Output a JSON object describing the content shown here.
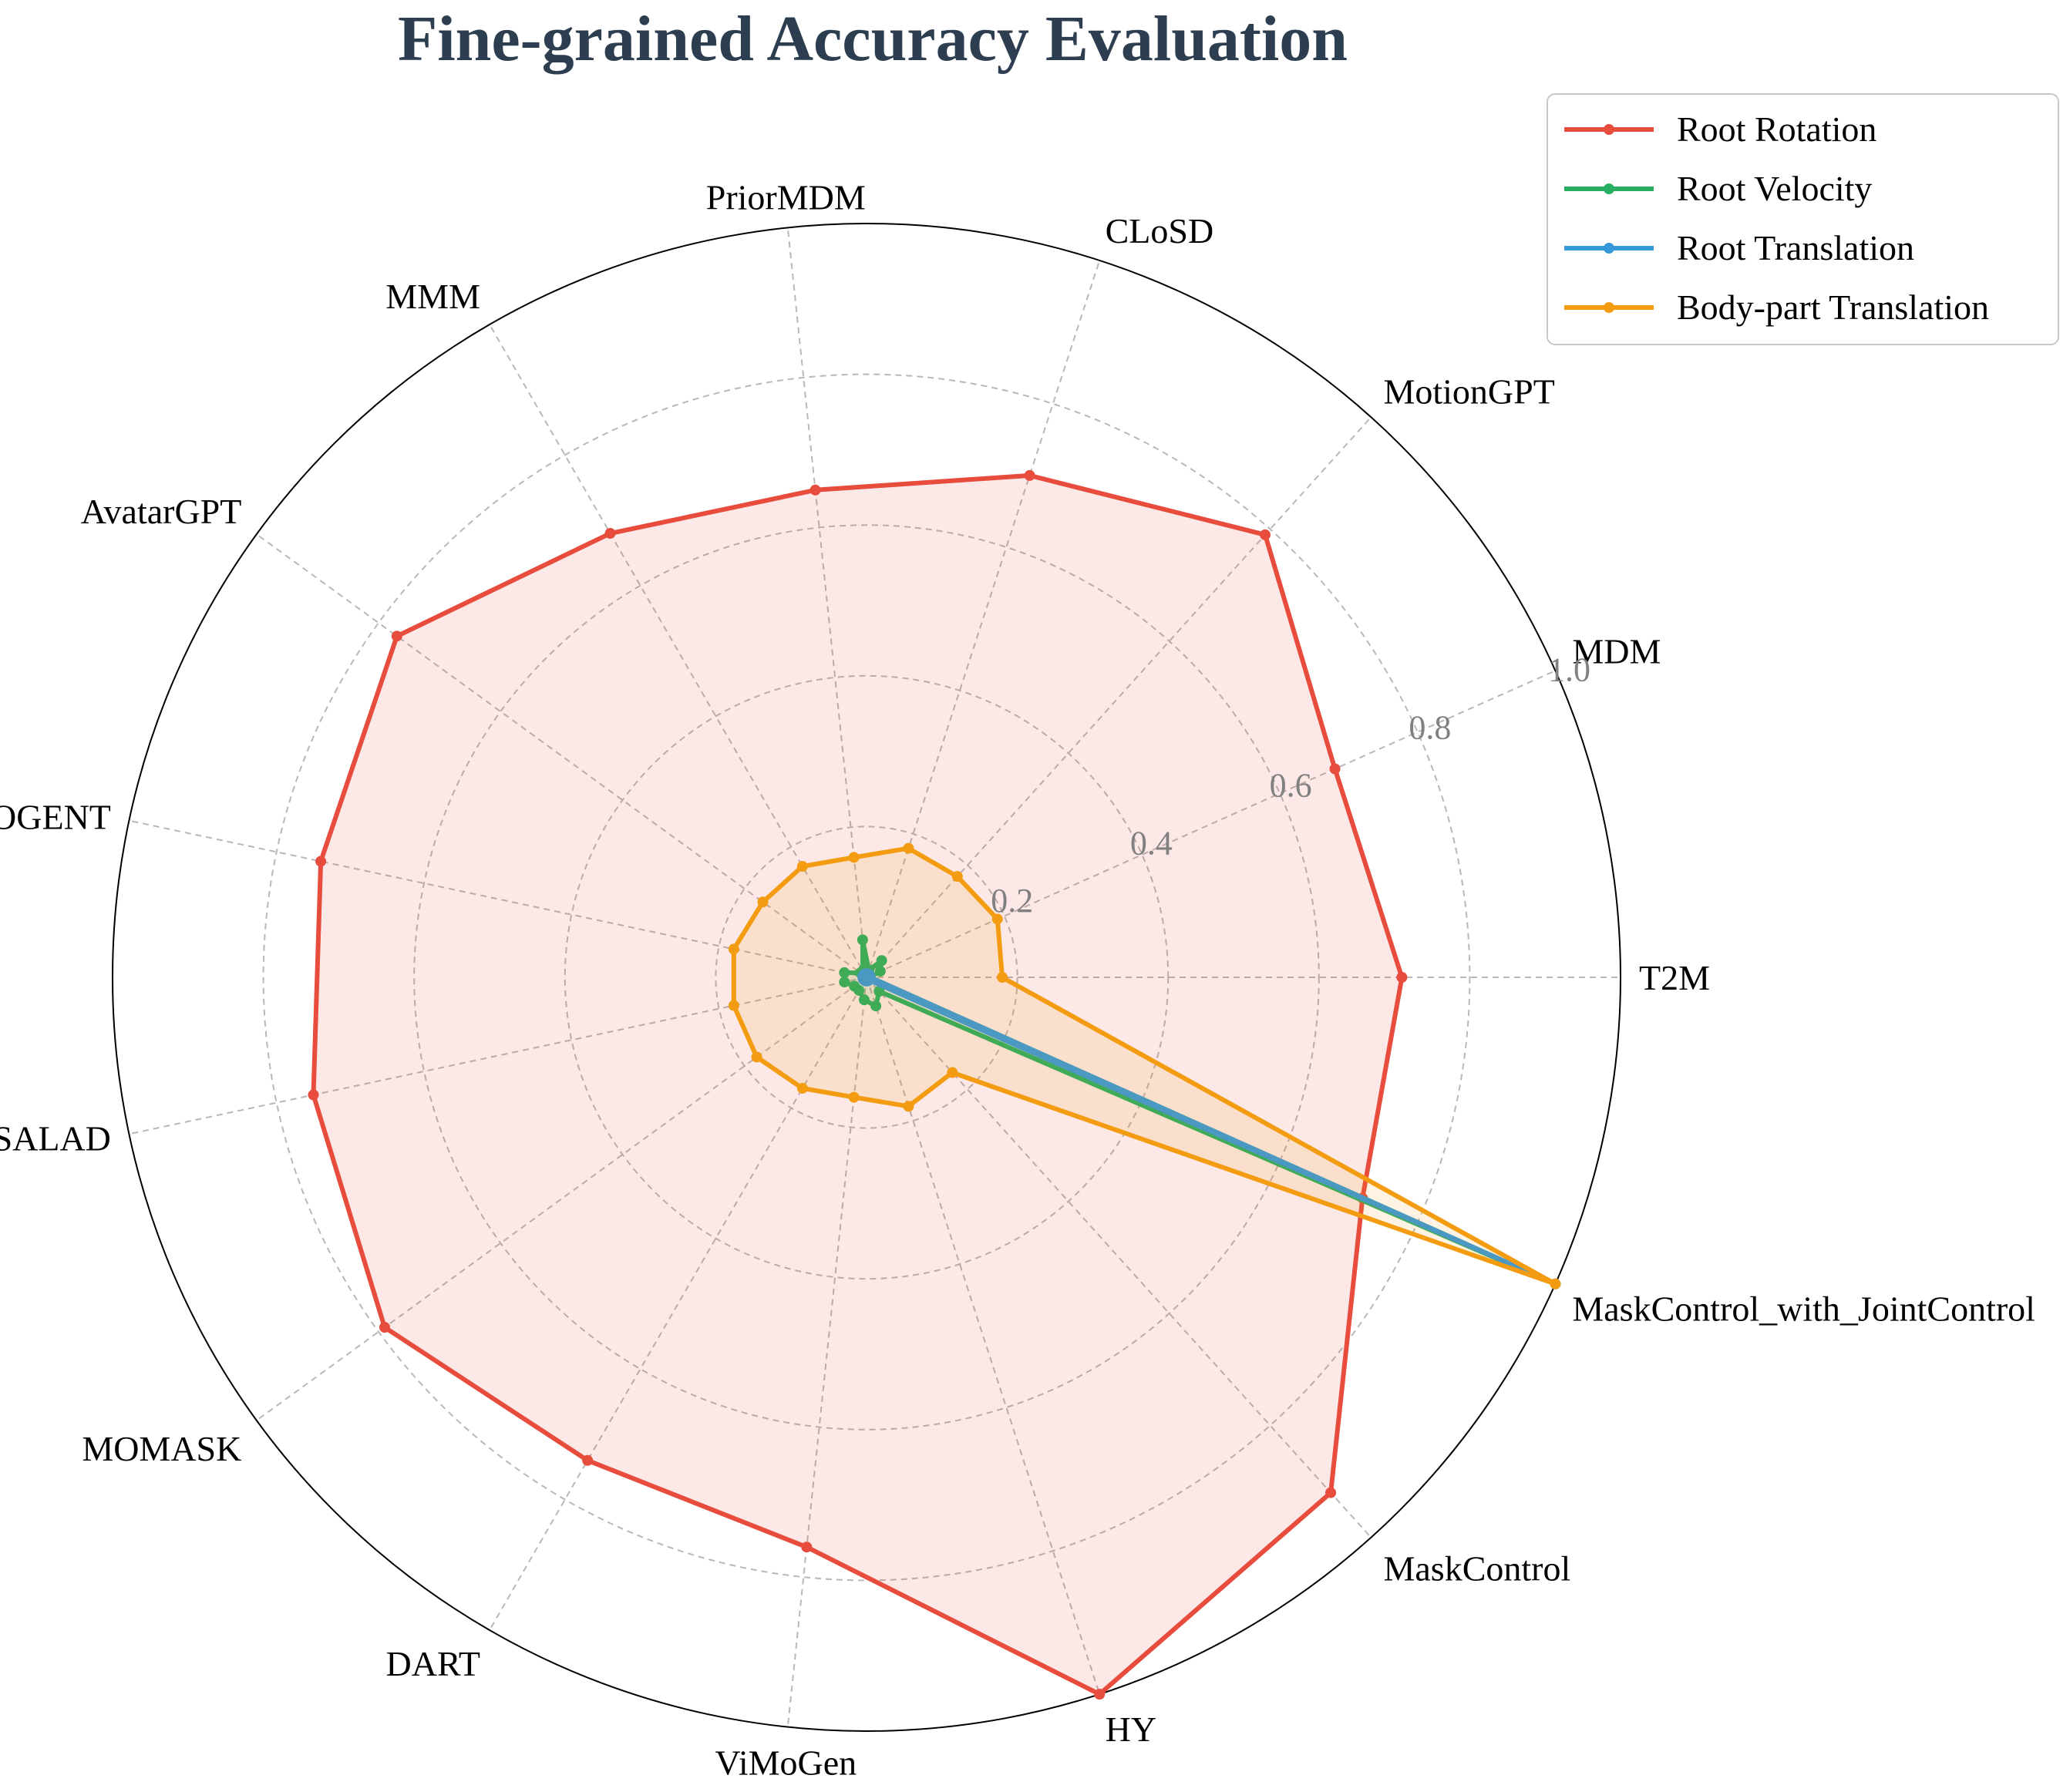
{
  "chart_data": {
    "type": "radar",
    "title": "Fine-grained Accuracy Evaluation",
    "categories": [
      "T2M",
      "MDM",
      "MotionGPT",
      "CLoSD",
      "PriorMDM",
      "MMM",
      "AvatarGPT",
      "MOGENT",
      "SALAD",
      "MOMASK",
      "DART",
      "ViMoGen",
      "HY",
      "MaskControl",
      "MaskControl_with_JointControl"
    ],
    "rlim": [
      0,
      1.0
    ],
    "rticks": [
      0.2,
      0.4,
      0.6,
      0.8,
      1.0
    ],
    "rtick_labels": [
      "0.2",
      "0.4",
      "0.6",
      "0.8",
      "1.0"
    ],
    "grid": true,
    "legend_position": "upper-right",
    "series": [
      {
        "name": "Root Rotation",
        "color": "#e74c3c",
        "values": [
          0.71,
          0.68,
          0.79,
          0.7,
          0.65,
          0.68,
          0.77,
          0.74,
          0.75,
          0.79,
          0.74,
          0.76,
          1.0,
          0.92,
          0.72
        ]
      },
      {
        "name": "Root Velocity",
        "color": "#27ae60",
        "values": [
          0.005,
          0.02,
          0.03,
          0.01,
          0.05,
          0.01,
          0.01,
          0.03,
          0.03,
          0.02,
          0.02,
          0.03,
          0.04,
          0.025,
          1.0
        ]
      },
      {
        "name": "Root Translation",
        "color": "#3498db",
        "values": [
          0.005,
          0.005,
          0.005,
          0.005,
          0.005,
          0.005,
          0.005,
          0.005,
          0.005,
          0.005,
          0.005,
          0.005,
          0.005,
          0.005,
          1.0
        ]
      },
      {
        "name": "Body-part Translation",
        "color": "#f39c12",
        "values": [
          0.18,
          0.19,
          0.18,
          0.18,
          0.16,
          0.17,
          0.17,
          0.18,
          0.18,
          0.18,
          0.17,
          0.16,
          0.18,
          0.17,
          1.0
        ]
      }
    ]
  }
}
